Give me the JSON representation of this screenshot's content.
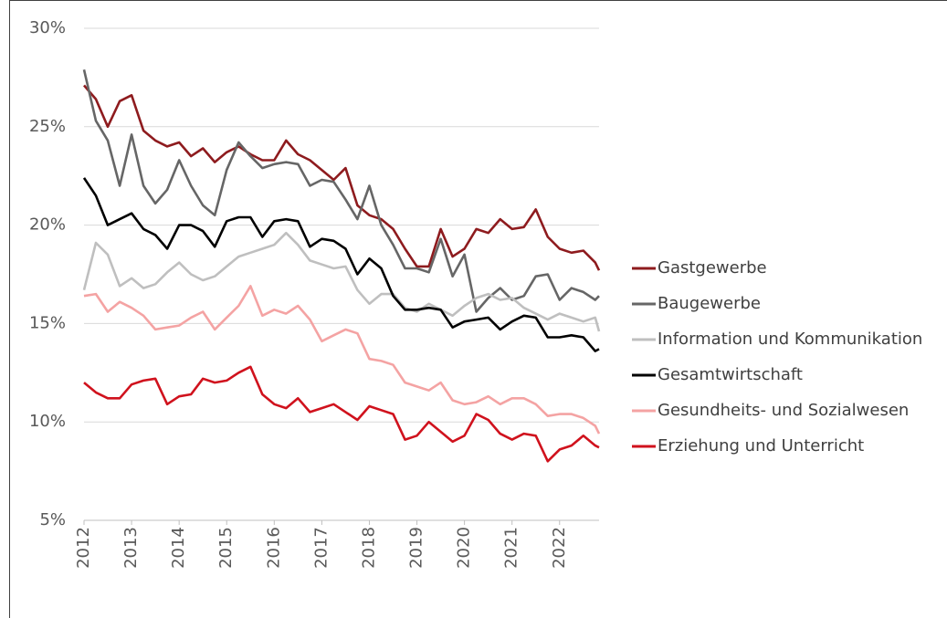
{
  "chart_data": {
    "type": "line",
    "x": [
      2012,
      2012.25,
      2012.5,
      2012.75,
      2013,
      2013.25,
      2013.5,
      2013.75,
      2014,
      2014.25,
      2014.5,
      2014.75,
      2015,
      2015.25,
      2015.5,
      2015.75,
      2016,
      2016.25,
      2016.5,
      2016.75,
      2017,
      2017.25,
      2017.5,
      2017.75,
      2018,
      2018.25,
      2018.5,
      2018.75,
      2019,
      2019.25,
      2019.5,
      2019.75,
      2020,
      2020.25,
      2020.5,
      2020.75,
      2021,
      2021.25,
      2021.5,
      2021.75,
      2022,
      2022.25,
      2022.5,
      2022.75,
      2022.83
    ],
    "series": [
      {
        "name": "Gastgewerbe",
        "color": "#8e1b1e",
        "values": [
          27.1,
          26.4,
          25.0,
          26.3,
          26.6,
          24.8,
          24.3,
          24.0,
          24.2,
          23.5,
          23.9,
          23.2,
          23.7,
          24.0,
          23.6,
          23.3,
          23.3,
          24.3,
          23.6,
          23.3,
          22.8,
          22.3,
          22.9,
          21.0,
          20.5,
          20.3,
          19.8,
          18.8,
          17.9,
          17.9,
          19.8,
          18.4,
          18.8,
          19.8,
          19.6,
          20.3,
          19.8,
          19.9,
          20.8,
          19.4,
          18.8,
          18.6,
          18.7,
          18.1,
          17.7
        ]
      },
      {
        "name": "Baugewerbe",
        "color": "#666666",
        "values": [
          27.9,
          25.3,
          24.3,
          22.0,
          24.6,
          22.0,
          21.1,
          21.8,
          23.3,
          22.0,
          21.0,
          20.5,
          22.8,
          24.2,
          23.5,
          22.9,
          23.1,
          23.2,
          23.1,
          22.0,
          22.3,
          22.2,
          21.3,
          20.3,
          22.0,
          20.0,
          19.0,
          17.8,
          17.8,
          17.6,
          19.3,
          17.4,
          18.5,
          15.6,
          16.3,
          16.8,
          16.2,
          16.4,
          17.4,
          17.5,
          16.2,
          16.8,
          16.6,
          16.2,
          16.4
        ]
      },
      {
        "name": "Information und Kommunikation",
        "color": "#bfbfbf",
        "values": [
          16.7,
          19.1,
          18.5,
          16.9,
          17.3,
          16.8,
          17.0,
          17.6,
          18.1,
          17.5,
          17.2,
          17.4,
          17.9,
          18.4,
          18.6,
          18.8,
          19.0,
          19.6,
          19.0,
          18.2,
          18.0,
          17.8,
          17.9,
          16.7,
          16.0,
          16.5,
          16.5,
          15.8,
          15.6,
          16.0,
          15.7,
          15.4,
          15.9,
          16.3,
          16.5,
          16.2,
          16.3,
          15.8,
          15.5,
          15.2,
          15.5,
          15.3,
          15.1,
          15.3,
          14.6
        ]
      },
      {
        "name": "Gesamtwirtschaft",
        "color": "#000000",
        "values": [
          22.4,
          21.5,
          20.0,
          20.3,
          20.6,
          19.8,
          19.5,
          18.8,
          20.0,
          20.0,
          19.7,
          18.9,
          20.2,
          20.4,
          20.4,
          19.4,
          20.2,
          20.3,
          20.2,
          18.9,
          19.3,
          19.2,
          18.8,
          17.5,
          18.3,
          17.8,
          16.4,
          15.7,
          15.7,
          15.8,
          15.7,
          14.8,
          15.1,
          15.2,
          15.3,
          14.7,
          15.1,
          15.4,
          15.3,
          14.3,
          14.3,
          14.4,
          14.3,
          13.6,
          13.7
        ]
      },
      {
        "name": "Gesundheits- und Sozialwesen",
        "color": "#f4a3a3",
        "values": [
          16.4,
          16.5,
          15.6,
          16.1,
          15.8,
          15.4,
          14.7,
          14.8,
          14.9,
          15.3,
          15.6,
          14.7,
          15.3,
          15.9,
          16.9,
          15.4,
          15.7,
          15.5,
          15.9,
          15.2,
          14.1,
          14.4,
          14.7,
          14.5,
          13.2,
          13.1,
          12.9,
          12.0,
          11.8,
          11.6,
          12.0,
          11.1,
          10.9,
          11.0,
          11.3,
          10.9,
          11.2,
          11.2,
          10.9,
          10.3,
          10.4,
          10.4,
          10.2,
          9.8,
          9.4
        ]
      },
      {
        "name": "Erziehung und Unterricht",
        "color": "#d0121d",
        "values": [
          12.0,
          11.5,
          11.2,
          11.2,
          11.9,
          12.1,
          12.2,
          10.9,
          11.3,
          11.4,
          12.2,
          12.0,
          12.1,
          12.5,
          12.8,
          11.4,
          10.9,
          10.7,
          11.2,
          10.5,
          10.7,
          10.9,
          10.5,
          10.1,
          10.8,
          10.6,
          10.4,
          9.1,
          9.3,
          10.0,
          9.5,
          9.0,
          9.3,
          10.4,
          10.1,
          9.4,
          9.1,
          9.4,
          9.3,
          8.0,
          8.6,
          8.8,
          9.3,
          8.8,
          8.7
        ]
      }
    ],
    "xlim": [
      2012,
      2022.83
    ],
    "xticks": [
      2012,
      2013,
      2014,
      2015,
      2016,
      2017,
      2018,
      2019,
      2020,
      2021,
      2022
    ],
    "ylim": [
      5,
      30
    ],
    "yticks": [
      {
        "value": 5,
        "label": "5%"
      },
      {
        "value": 10,
        "label": "10%"
      },
      {
        "value": 15,
        "label": "15%"
      },
      {
        "value": 20,
        "label": "20%"
      },
      {
        "value": 25,
        "label": "25%"
      },
      {
        "value": 30,
        "label": "30%"
      }
    ],
    "grid": true,
    "legend": "right"
  }
}
